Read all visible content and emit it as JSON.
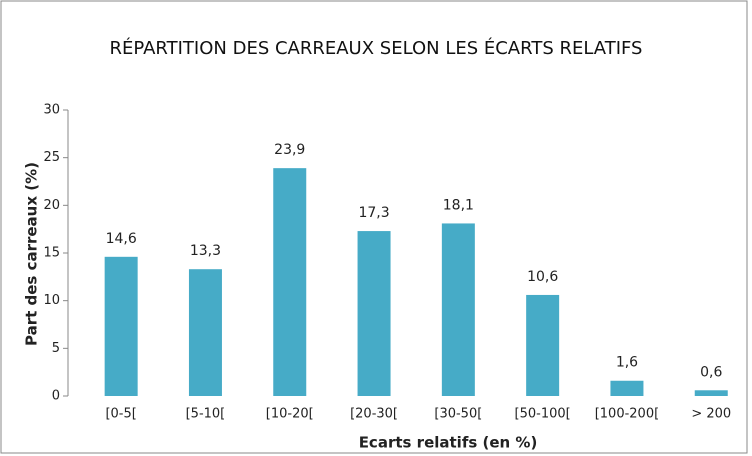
{
  "chart_data": {
    "type": "bar",
    "title": "RÉPARTITION DES CARREAUX SELON LES ÉCARTS RELATIFS",
    "x_label": "Ecarts relatifs (en %)",
    "y_label": "Part des carreaux (%)",
    "categories": [
      "[0-5[",
      "[5-10[",
      "[10-20[",
      "[20-30[",
      "[30-50[",
      "[50-100[",
      "[100-200[",
      "> 200"
    ],
    "values": [
      14.6,
      13.3,
      23.9,
      17.3,
      18.1,
      10.6,
      1.6,
      0.6
    ],
    "value_labels": [
      "14,6",
      "13,3",
      "23,9",
      "17,3",
      "18,1",
      "10,6",
      "1,6",
      "0,6"
    ],
    "color": "#46abc7",
    "ylim": [
      0,
      30
    ],
    "yticks": [
      0,
      5,
      10,
      15,
      20,
      25,
      30
    ],
    "grid": false
  }
}
